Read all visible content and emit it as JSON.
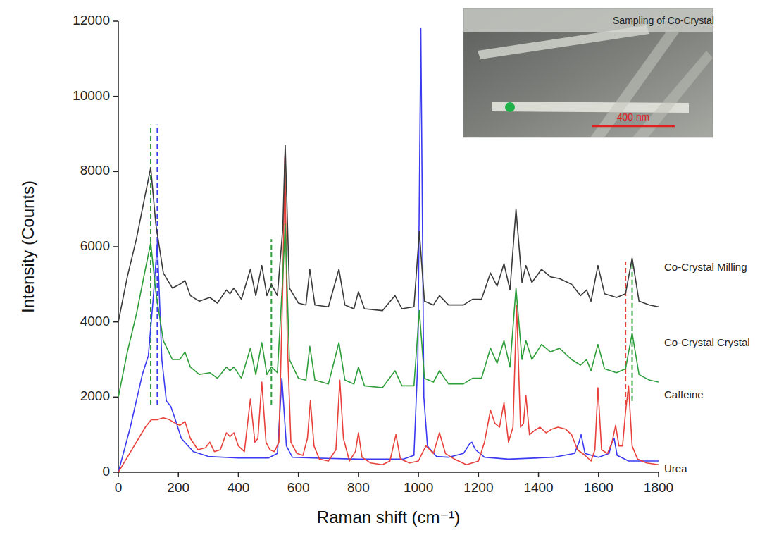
{
  "chart_data": {
    "type": "line",
    "x_label": "Raman shift (cm⁻¹)",
    "y_label": "Intensity (Counts)",
    "xlim": [
      0,
      1800
    ],
    "xticks": [
      0,
      200,
      400,
      600,
      800,
      1000,
      1200,
      1400,
      1600,
      1800
    ],
    "ylim": [
      0,
      12000
    ],
    "yticks": [
      0,
      2000,
      4000,
      6000,
      8000,
      10000,
      12000
    ],
    "grid": false,
    "series": [
      {
        "name": "Co-Crystal Milling",
        "color": "#3a3a3a",
        "x": [
          0,
          30,
          60,
          90,
          108,
          125,
          150,
          180,
          205,
          222,
          240,
          270,
          305,
          330,
          360,
          372,
          385,
          410,
          440,
          458,
          478,
          495,
          510,
          530,
          548,
          556,
          570,
          600,
          625,
          638,
          655,
          700,
          735,
          755,
          785,
          800,
          820,
          880,
          922,
          945,
          985,
          1003,
          1020,
          1050,
          1070,
          1100,
          1150,
          1180,
          1210,
          1240,
          1262,
          1285,
          1305,
          1325,
          1345,
          1358,
          1378,
          1410,
          1440,
          1470,
          1510,
          1540,
          1560,
          1575,
          1598,
          1620,
          1660,
          1690,
          1712,
          1735,
          1770,
          1800
        ],
        "values": [
          4000,
          5200,
          6200,
          7400,
          8100,
          6600,
          5300,
          4900,
          5000,
          5100,
          4700,
          4550,
          4650,
          4500,
          4850,
          4750,
          4900,
          4600,
          5400,
          4700,
          5500,
          4700,
          5000,
          4700,
          6500,
          8700,
          4900,
          4500,
          4450,
          5400,
          4450,
          4400,
          5400,
          4450,
          4350,
          4800,
          4350,
          4300,
          4700,
          4350,
          4400,
          6400,
          4550,
          4450,
          4700,
          4450,
          4450,
          4600,
          4600,
          5300,
          4950,
          5550,
          4850,
          7000,
          5050,
          5500,
          5050,
          5400,
          5200,
          5150,
          5000,
          4700,
          4850,
          4550,
          5500,
          4750,
          4650,
          4750,
          5700,
          4550,
          4450,
          4400
        ]
      },
      {
        "name": "Co-Crystal Crystal",
        "color": "#2e9e3a",
        "x": [
          0,
          30,
          60,
          90,
          108,
          125,
          150,
          180,
          205,
          222,
          240,
          270,
          305,
          330,
          360,
          372,
          385,
          410,
          440,
          458,
          478,
          495,
          510,
          530,
          548,
          556,
          570,
          600,
          625,
          638,
          655,
          700,
          735,
          755,
          785,
          800,
          820,
          880,
          922,
          945,
          985,
          1003,
          1020,
          1050,
          1070,
          1100,
          1150,
          1180,
          1210,
          1240,
          1262,
          1285,
          1305,
          1325,
          1345,
          1358,
          1378,
          1410,
          1440,
          1470,
          1510,
          1540,
          1560,
          1575,
          1598,
          1620,
          1660,
          1690,
          1712,
          1735,
          1770,
          1800
        ],
        "values": [
          2000,
          3200,
          4200,
          5400,
          6100,
          4800,
          3500,
          3000,
          3000,
          3200,
          2800,
          2600,
          2650,
          2500,
          2800,
          2700,
          2800,
          2500,
          3300,
          2600,
          3450,
          2600,
          2800,
          2650,
          5200,
          6600,
          3000,
          2500,
          2450,
          3350,
          2450,
          2350,
          3450,
          2450,
          2350,
          2800,
          2300,
          2250,
          2700,
          2300,
          2300,
          4300,
          2500,
          2400,
          2700,
          2350,
          2350,
          2500,
          2500,
          3300,
          2900,
          3500,
          2800,
          4900,
          3000,
          3500,
          3000,
          3400,
          3200,
          3300,
          3000,
          2850,
          3000,
          2700,
          3400,
          2750,
          2650,
          2750,
          3700,
          2600,
          2450,
          2400
        ]
      },
      {
        "name": "Caffeine",
        "color": "#e8403a",
        "x": [
          0,
          30,
          60,
          90,
          110,
          130,
          150,
          170,
          190,
          205,
          222,
          240,
          265,
          290,
          305,
          320,
          340,
          360,
          372,
          385,
          400,
          420,
          440,
          455,
          465,
          478,
          492,
          505,
          520,
          535,
          548,
          555,
          563,
          575,
          595,
          615,
          630,
          640,
          652,
          670,
          700,
          725,
          738,
          750,
          770,
          790,
          800,
          812,
          840,
          880,
          905,
          925,
          940,
          970,
          1000,
          1012,
          1025,
          1038,
          1050,
          1070,
          1090,
          1120,
          1160,
          1200,
          1220,
          1240,
          1255,
          1270,
          1285,
          1300,
          1315,
          1327,
          1340,
          1350,
          1358,
          1370,
          1385,
          1405,
          1425,
          1445,
          1465,
          1490,
          1510,
          1530,
          1555,
          1575,
          1588,
          1598,
          1610,
          1630,
          1645,
          1657,
          1668,
          1680,
          1690,
          1700,
          1712,
          1730,
          1760,
          1800
        ],
        "values": [
          0,
          400,
          800,
          1200,
          1400,
          1400,
          1450,
          1400,
          1300,
          1250,
          1350,
          900,
          600,
          650,
          800,
          550,
          600,
          1050,
          950,
          1050,
          700,
          550,
          1950,
          800,
          900,
          2400,
          800,
          600,
          550,
          800,
          5000,
          8400,
          3500,
          800,
          500,
          450,
          900,
          1900,
          700,
          350,
          300,
          600,
          2450,
          900,
          300,
          550,
          1050,
          400,
          250,
          200,
          300,
          1000,
          350,
          250,
          300,
          500,
          700,
          600,
          500,
          1050,
          500,
          350,
          200,
          300,
          800,
          1650,
          1300,
          1200,
          1850,
          800,
          1200,
          4450,
          1200,
          1300,
          2050,
          1000,
          1100,
          1200,
          1050,
          1150,
          1200,
          1150,
          1000,
          600,
          450,
          300,
          600,
          2250,
          600,
          500,
          800,
          1250,
          700,
          700,
          1600,
          2300,
          700,
          350,
          250,
          200
        ]
      },
      {
        "name": "Urea",
        "color": "#3a3af0",
        "x": [
          0,
          40,
          80,
          100,
          115,
          130,
          145,
          160,
          175,
          190,
          210,
          250,
          300,
          400,
          500,
          530,
          545,
          560,
          580,
          650,
          800,
          950,
          985,
          998,
          1008,
          1018,
          1030,
          1060,
          1100,
          1150,
          1170,
          1178,
          1190,
          1220,
          1300,
          1450,
          1520,
          1535,
          1542,
          1555,
          1600,
          1635,
          1645,
          1652,
          1662,
          1700,
          1800
        ],
        "values": [
          0,
          1200,
          2600,
          3100,
          4500,
          6100,
          3000,
          1900,
          1750,
          1400,
          900,
          550,
          420,
          380,
          380,
          500,
          2500,
          700,
          400,
          380,
          350,
          350,
          450,
          3000,
          11800,
          2000,
          700,
          420,
          400,
          500,
          750,
          800,
          600,
          400,
          350,
          400,
          500,
          800,
          1000,
          500,
          400,
          500,
          800,
          900,
          450,
          300,
          300
        ]
      }
    ],
    "reference_lines": [
      {
        "x": 108,
        "from": 1800,
        "to": 9250,
        "color": "#2e9e3a"
      },
      {
        "x": 130,
        "from": 1800,
        "to": 9250,
        "color": "#3a3af0"
      },
      {
        "x": 510,
        "from": 1800,
        "to": 6200,
        "color": "#2e9e3a"
      },
      {
        "x": 1690,
        "from": 1800,
        "to": 5600,
        "color": "#e8403a"
      },
      {
        "x": 1712,
        "from": 1900,
        "to": 5600,
        "color": "#2e9e3a"
      }
    ],
    "inset": {
      "title": "Sampling of Co-Crystal",
      "scale_label": "400 nm"
    }
  }
}
